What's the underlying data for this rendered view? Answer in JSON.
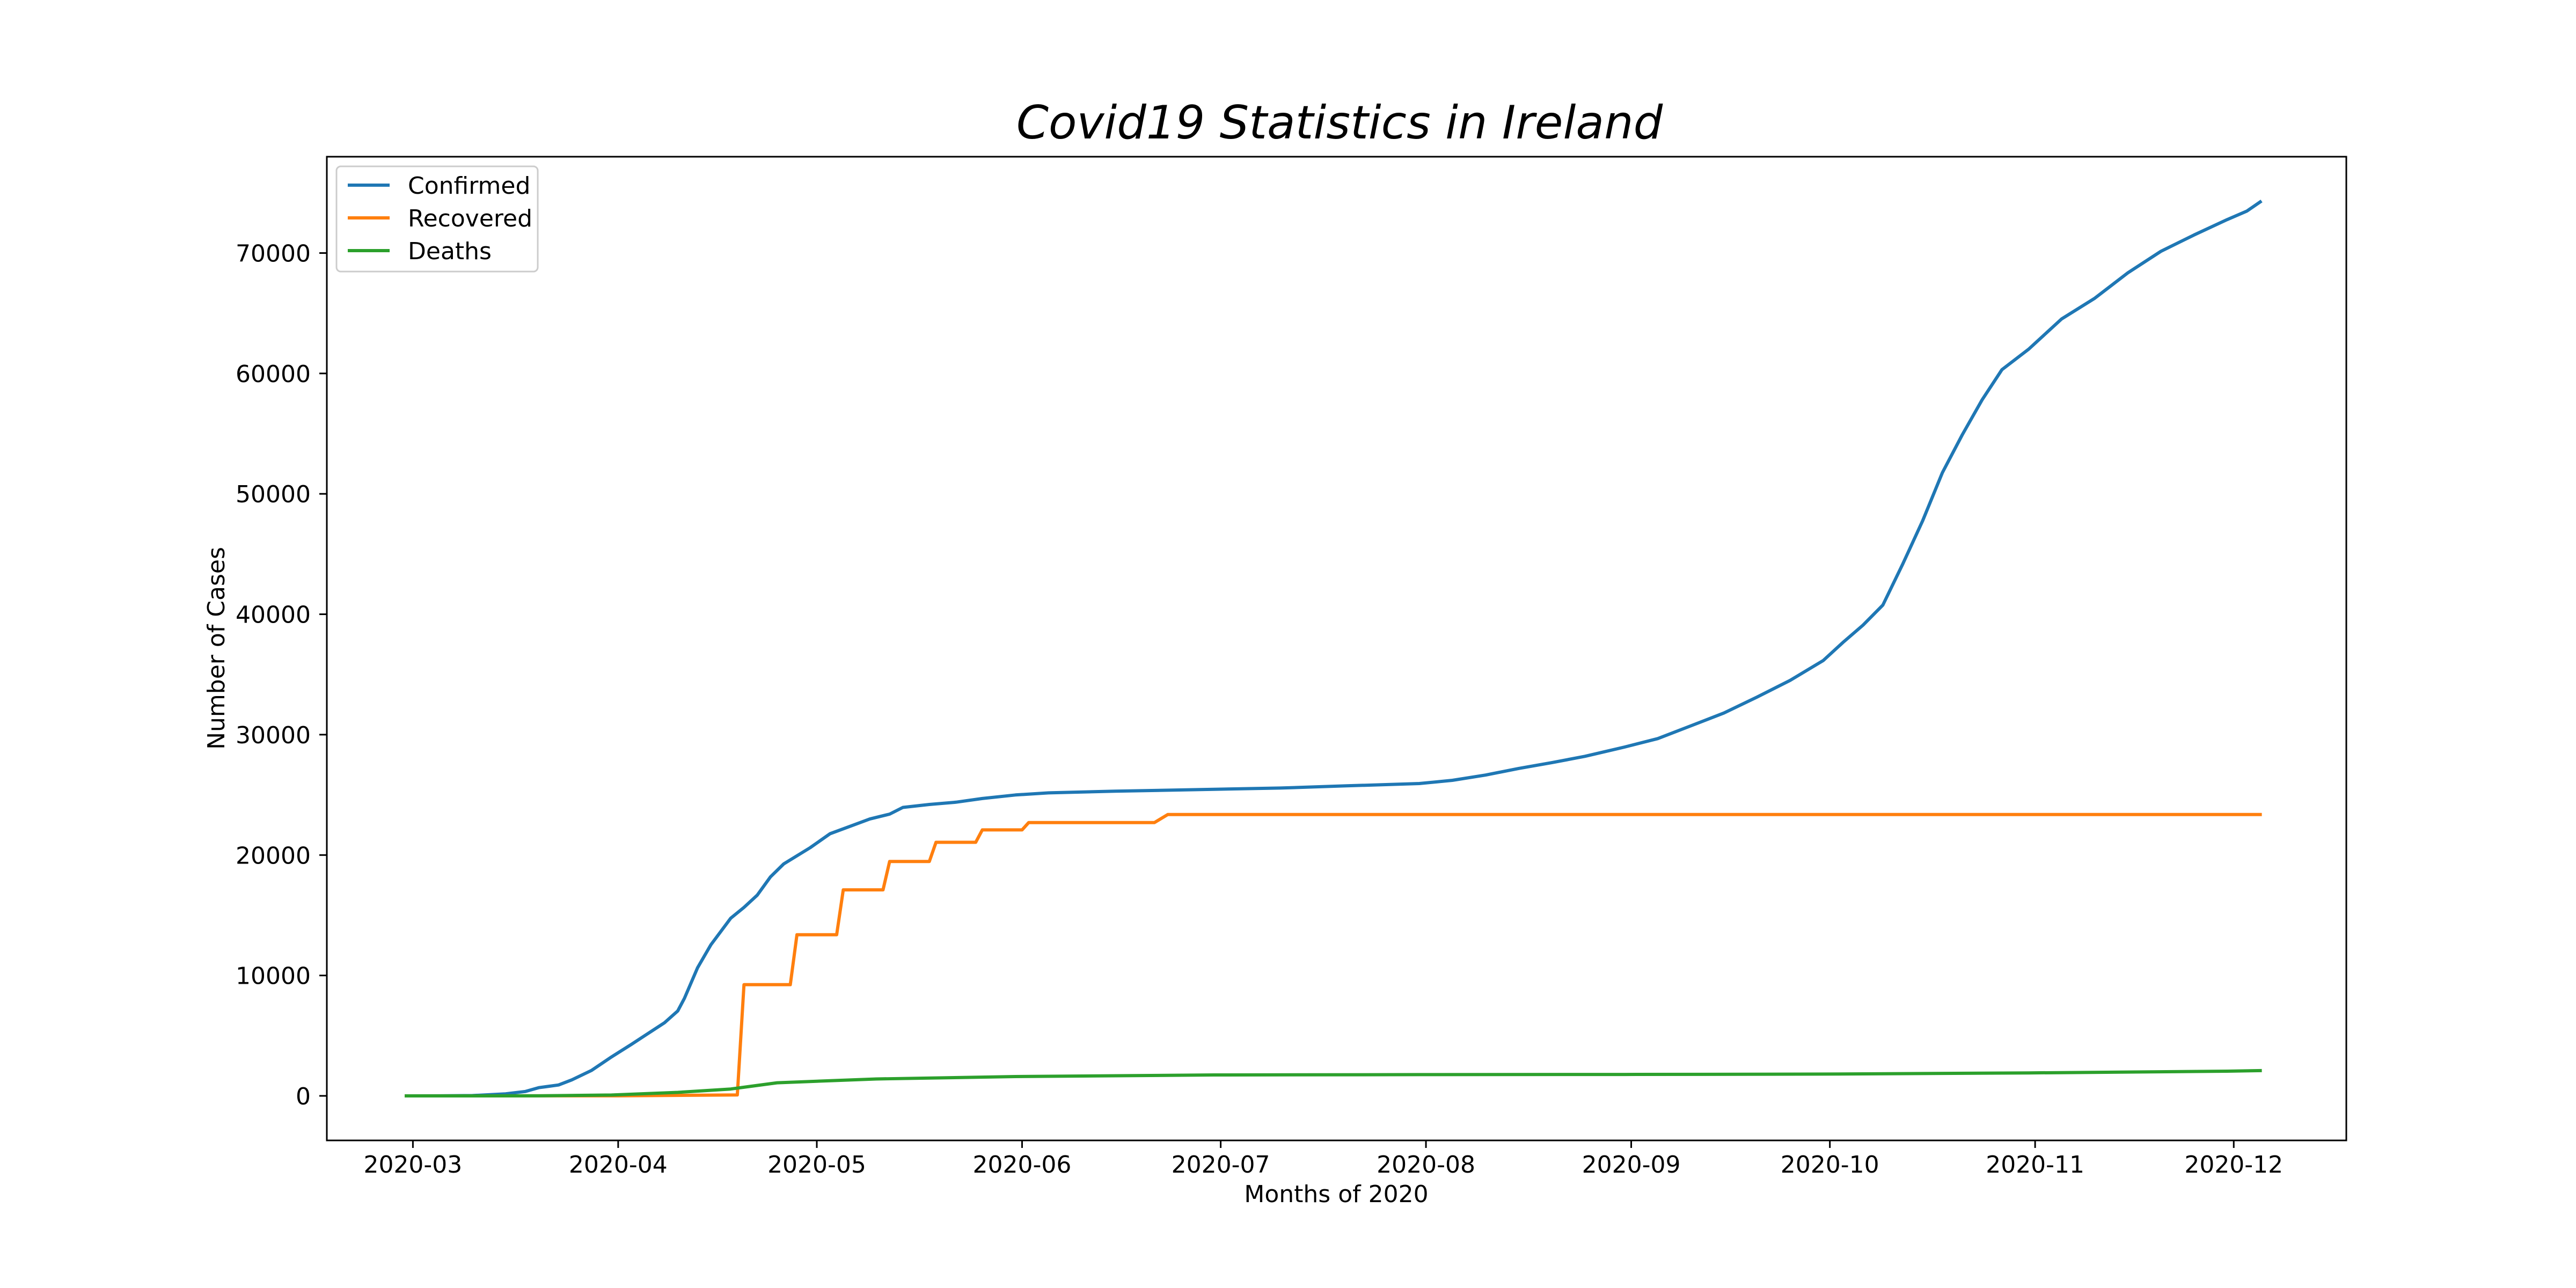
{
  "chart_data": {
    "type": "line",
    "title": "Covid19 Statistics in Ireland",
    "xlabel": "Months of 2020",
    "ylabel": "Number of Cases",
    "x_ticks": [
      "2020-03",
      "2020-04",
      "2020-05",
      "2020-06",
      "2020-07",
      "2020-08",
      "2020-09",
      "2020-10",
      "2020-11",
      "2020-12"
    ],
    "y_ticks": [
      0,
      10000,
      20000,
      30000,
      40000,
      50000,
      60000,
      70000
    ],
    "xlim": [
      "2020-02-17",
      "2020-12-18"
    ],
    "ylim": [
      -3700,
      78000
    ],
    "grid": false,
    "legend_position": "upper-left",
    "series": [
      {
        "name": "Confirmed",
        "color": "#1f77b4",
        "points": [
          [
            "2020-02-29",
            1
          ],
          [
            "2020-03-05",
            6
          ],
          [
            "2020-03-10",
            24
          ],
          [
            "2020-03-15",
            169
          ],
          [
            "2020-03-18",
            366
          ],
          [
            "2020-03-20",
            683
          ],
          [
            "2020-03-23",
            906
          ],
          [
            "2020-03-25",
            1329
          ],
          [
            "2020-03-28",
            2121
          ],
          [
            "2020-03-31",
            3235
          ],
          [
            "2020-04-03",
            4273
          ],
          [
            "2020-04-05",
            4994
          ],
          [
            "2020-04-08",
            6074
          ],
          [
            "2020-04-10",
            7054
          ],
          [
            "2020-04-11",
            8089
          ],
          [
            "2020-04-13",
            10647
          ],
          [
            "2020-04-15",
            12547
          ],
          [
            "2020-04-18",
            14758
          ],
          [
            "2020-04-20",
            15652
          ],
          [
            "2020-04-22",
            16671
          ],
          [
            "2020-04-24",
            18184
          ],
          [
            "2020-04-26",
            19262
          ],
          [
            "2020-04-30",
            20612
          ],
          [
            "2020-05-03",
            21772
          ],
          [
            "2020-05-06",
            22385
          ],
          [
            "2020-05-09",
            22996
          ],
          [
            "2020-05-12",
            23401
          ],
          [
            "2020-05-14",
            23956
          ],
          [
            "2020-05-18",
            24200
          ],
          [
            "2020-05-22",
            24391
          ],
          [
            "2020-05-26",
            24698
          ],
          [
            "2020-05-31",
            24990
          ],
          [
            "2020-06-05",
            25163
          ],
          [
            "2020-06-15",
            25303
          ],
          [
            "2020-06-30",
            25462
          ],
          [
            "2020-07-10",
            25565
          ],
          [
            "2020-07-20",
            25750
          ],
          [
            "2020-07-31",
            25942
          ],
          [
            "2020-08-05",
            26208
          ],
          [
            "2020-08-10",
            26644
          ],
          [
            "2020-08-15",
            27191
          ],
          [
            "2020-08-20",
            27676
          ],
          [
            "2020-08-25",
            28201
          ],
          [
            "2020-08-31",
            28969
          ],
          [
            "2020-09-05",
            29672
          ],
          [
            "2020-09-10",
            30730
          ],
          [
            "2020-09-15",
            31799
          ],
          [
            "2020-09-20",
            33121
          ],
          [
            "2020-09-25",
            34509
          ],
          [
            "2020-09-30",
            36155
          ],
          [
            "2020-10-03",
            37668
          ],
          [
            "2020-10-06",
            39088
          ],
          [
            "2020-10-09",
            40761
          ],
          [
            "2020-10-12",
            44159
          ],
          [
            "2020-10-15",
            47744
          ],
          [
            "2020-10-18",
            51764
          ],
          [
            "2020-10-21",
            54902
          ],
          [
            "2020-10-24",
            57809
          ],
          [
            "2020-10-27",
            60317
          ],
          [
            "2020-10-31",
            62002
          ],
          [
            "2020-11-05",
            64525
          ],
          [
            "2020-11-10",
            66243
          ],
          [
            "2020-11-15",
            68356
          ],
          [
            "2020-11-20",
            70143
          ],
          [
            "2020-11-25",
            71496
          ],
          [
            "2020-11-30",
            72775
          ],
          [
            "2020-12-03",
            73491
          ],
          [
            "2020-12-05",
            74246
          ]
        ]
      },
      {
        "name": "Recovered",
        "color": "#ff7f0e",
        "points": [
          [
            "2020-02-29",
            0
          ],
          [
            "2020-03-25",
            5
          ],
          [
            "2020-04-01",
            5
          ],
          [
            "2020-04-19",
            77
          ],
          [
            "2020-04-20",
            9233
          ],
          [
            "2020-04-27",
            9233
          ],
          [
            "2020-04-28",
            13386
          ],
          [
            "2020-05-04",
            13386
          ],
          [
            "2020-05-05",
            17110
          ],
          [
            "2020-05-11",
            17110
          ],
          [
            "2020-05-12",
            19470
          ],
          [
            "2020-05-18",
            19470
          ],
          [
            "2020-05-19",
            21060
          ],
          [
            "2020-05-25",
            21060
          ],
          [
            "2020-05-26",
            22089
          ],
          [
            "2020-06-01",
            22089
          ],
          [
            "2020-06-02",
            22698
          ],
          [
            "2020-06-21",
            22698
          ],
          [
            "2020-06-23",
            23364
          ],
          [
            "2020-12-05",
            23364
          ]
        ]
      },
      {
        "name": "Deaths",
        "color": "#2ca02c",
        "points": [
          [
            "2020-02-29",
            0
          ],
          [
            "2020-03-20",
            3
          ],
          [
            "2020-03-31",
            71
          ],
          [
            "2020-04-10",
            288
          ],
          [
            "2020-04-18",
            571
          ],
          [
            "2020-04-25",
            1087
          ],
          [
            "2020-05-10",
            1403
          ],
          [
            "2020-05-31",
            1606
          ],
          [
            "2020-06-30",
            1736
          ],
          [
            "2020-07-31",
            1763
          ],
          [
            "2020-08-31",
            1777
          ],
          [
            "2020-09-30",
            1810
          ],
          [
            "2020-10-31",
            1908
          ],
          [
            "2020-11-30",
            2050
          ],
          [
            "2020-12-05",
            2099
          ]
        ]
      }
    ]
  }
}
